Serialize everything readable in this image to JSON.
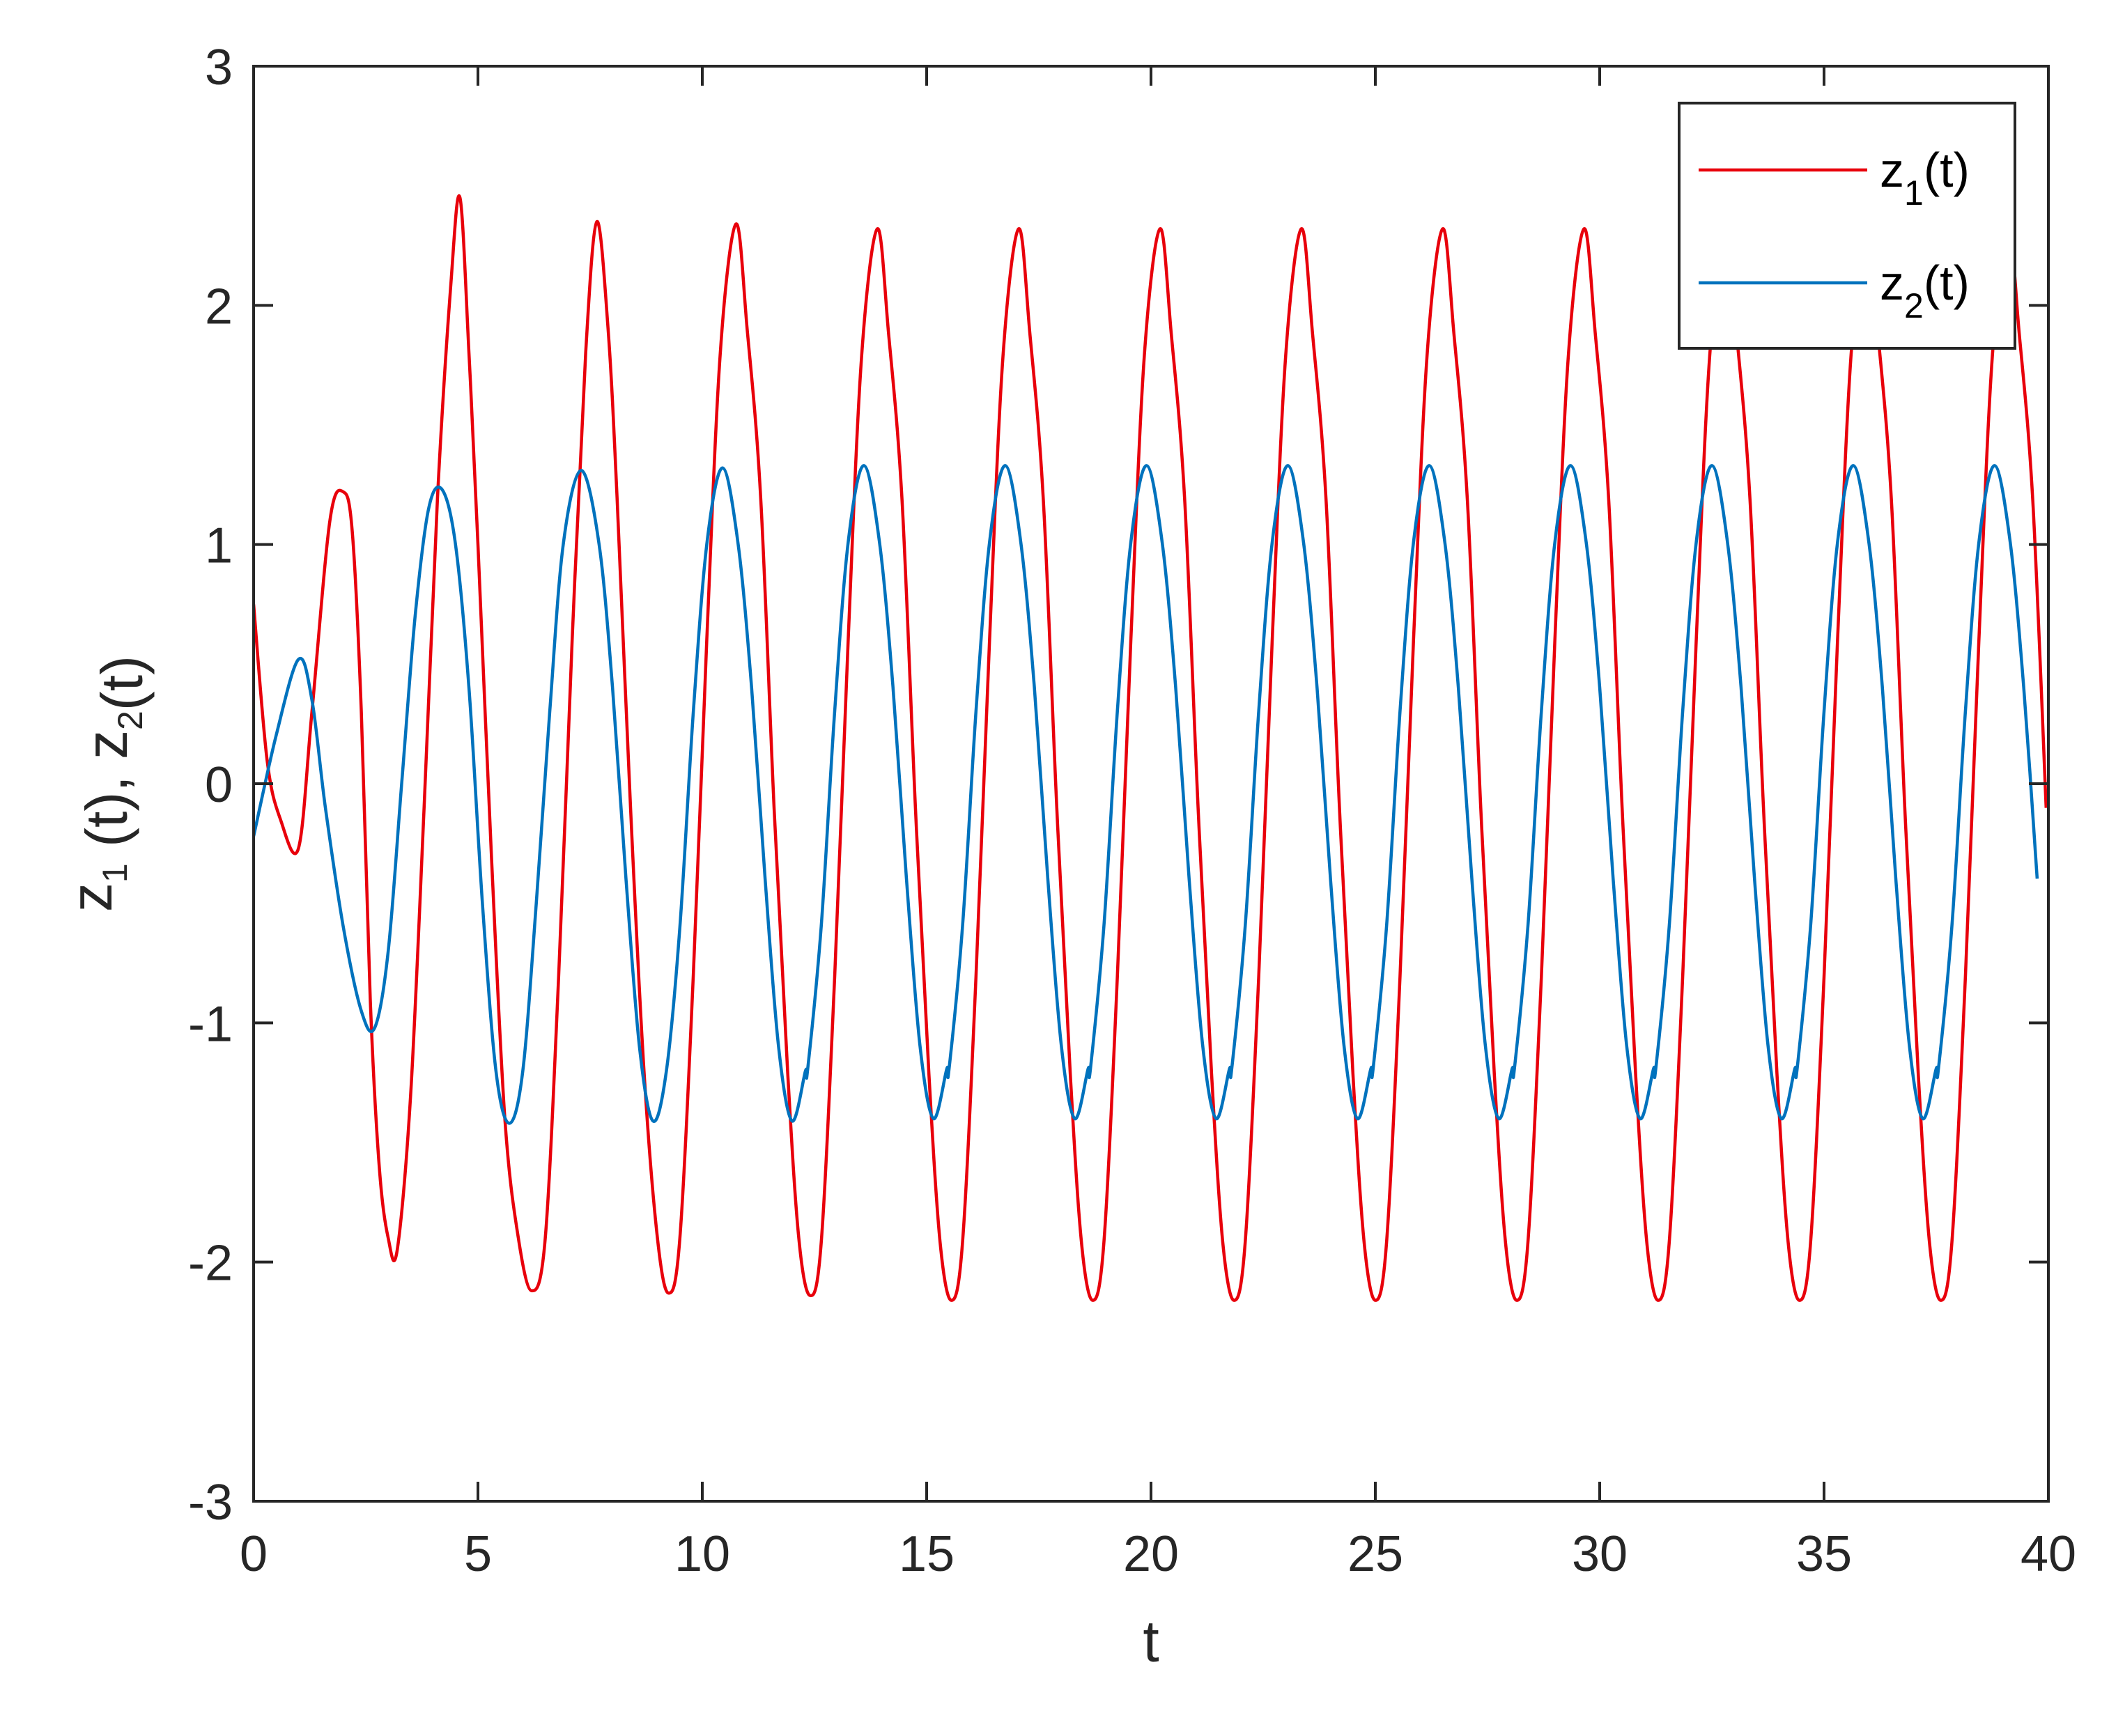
{
  "chart_data": {
    "type": "line",
    "title": "",
    "xlabel": "t",
    "ylabel": {
      "base1": "z",
      "sub1": "1",
      "mid": " (t), ",
      "base2": "z",
      "sub2": "2",
      "end": "(t)"
    },
    "xlim": [
      0,
      40
    ],
    "ylim": [
      -3,
      3
    ],
    "xticks": [
      0,
      5,
      10,
      15,
      20,
      25,
      30,
      35,
      40
    ],
    "yticks": [
      -3,
      -2,
      -1,
      0,
      1,
      2,
      3
    ],
    "grid": false,
    "legend_position": "top-right",
    "series": [
      {
        "name": {
          "base": "z",
          "sub": "1",
          "suffix": "(t)"
        },
        "color": "#e8000b",
        "x": [
          0,
          0.3,
          0.6,
          1.0,
          1.3,
          1.7,
          2.0,
          2.2,
          2.4,
          2.6,
          2.8,
          3.0,
          3.2,
          3.5,
          3.8,
          4.1,
          4.4,
          4.6,
          4.8,
          5.0,
          5.3,
          5.6,
          5.9,
          6.2,
          6.5,
          6.8,
          7.1,
          7.4,
          7.65,
          7.9,
          8.1,
          8.4,
          8.7,
          9.0,
          9.25,
          9.5,
          9.8,
          10.1,
          10.4,
          10.75,
          11.0,
          11.3,
          11.6,
          11.9,
          12.15,
          12.4
        ],
        "y": [
          0.75,
          0.1,
          -0.15,
          -0.27,
          0.3,
          1.1,
          1.22,
          1.05,
          0.3,
          -0.9,
          -1.6,
          -1.9,
          -1.95,
          -1.3,
          -0.1,
          1.2,
          2.1,
          2.45,
          1.8,
          1.0,
          -0.3,
          -1.4,
          -1.9,
          -2.12,
          -1.9,
          -0.8,
          0.6,
          1.8,
          2.35,
          1.9,
          1.2,
          -0.1,
          -1.2,
          -1.9,
          -2.13,
          -1.9,
          -0.8,
          0.6,
          1.8,
          2.34,
          1.9,
          1.2,
          -0.1,
          -1.2,
          -1.9,
          -2.14
        ]
      },
      {
        "name": {
          "base": "z",
          "sub": "2",
          "suffix": "(t)"
        },
        "color": "#0072bd",
        "x": [
          0,
          0.5,
          1.0,
          1.3,
          1.6,
          2.0,
          2.4,
          2.7,
          3.0,
          3.3,
          3.6,
          3.9,
          4.2,
          4.5,
          4.8,
          5.1,
          5.4,
          5.7,
          6.0,
          6.3,
          6.6,
          6.9,
          7.3,
          7.7,
          8.0,
          8.3,
          8.6,
          8.9,
          9.2,
          9.5,
          9.8,
          10.1,
          10.45,
          10.8,
          11.1,
          11.4,
          11.7,
          12.0,
          12.3
        ],
        "y": [
          -0.22,
          0.2,
          0.52,
          0.35,
          -0.1,
          -0.6,
          -0.95,
          -1.02,
          -0.7,
          0.0,
          0.7,
          1.15,
          1.23,
          1.0,
          0.4,
          -0.5,
          -1.2,
          -1.42,
          -1.2,
          -0.5,
          0.3,
          1.0,
          1.31,
          1.0,
          0.4,
          -0.4,
          -1.1,
          -1.41,
          -1.2,
          -0.6,
          0.3,
          1.0,
          1.32,
          1.0,
          0.4,
          -0.4,
          -1.1,
          -1.41,
          -1.2
        ]
      }
    ],
    "periodic_extension": {
      "period": 3.15,
      "z1": {
        "max": 2.32,
        "min": -2.16
      },
      "z2": {
        "max": 1.33,
        "min": -1.4
      }
    }
  }
}
